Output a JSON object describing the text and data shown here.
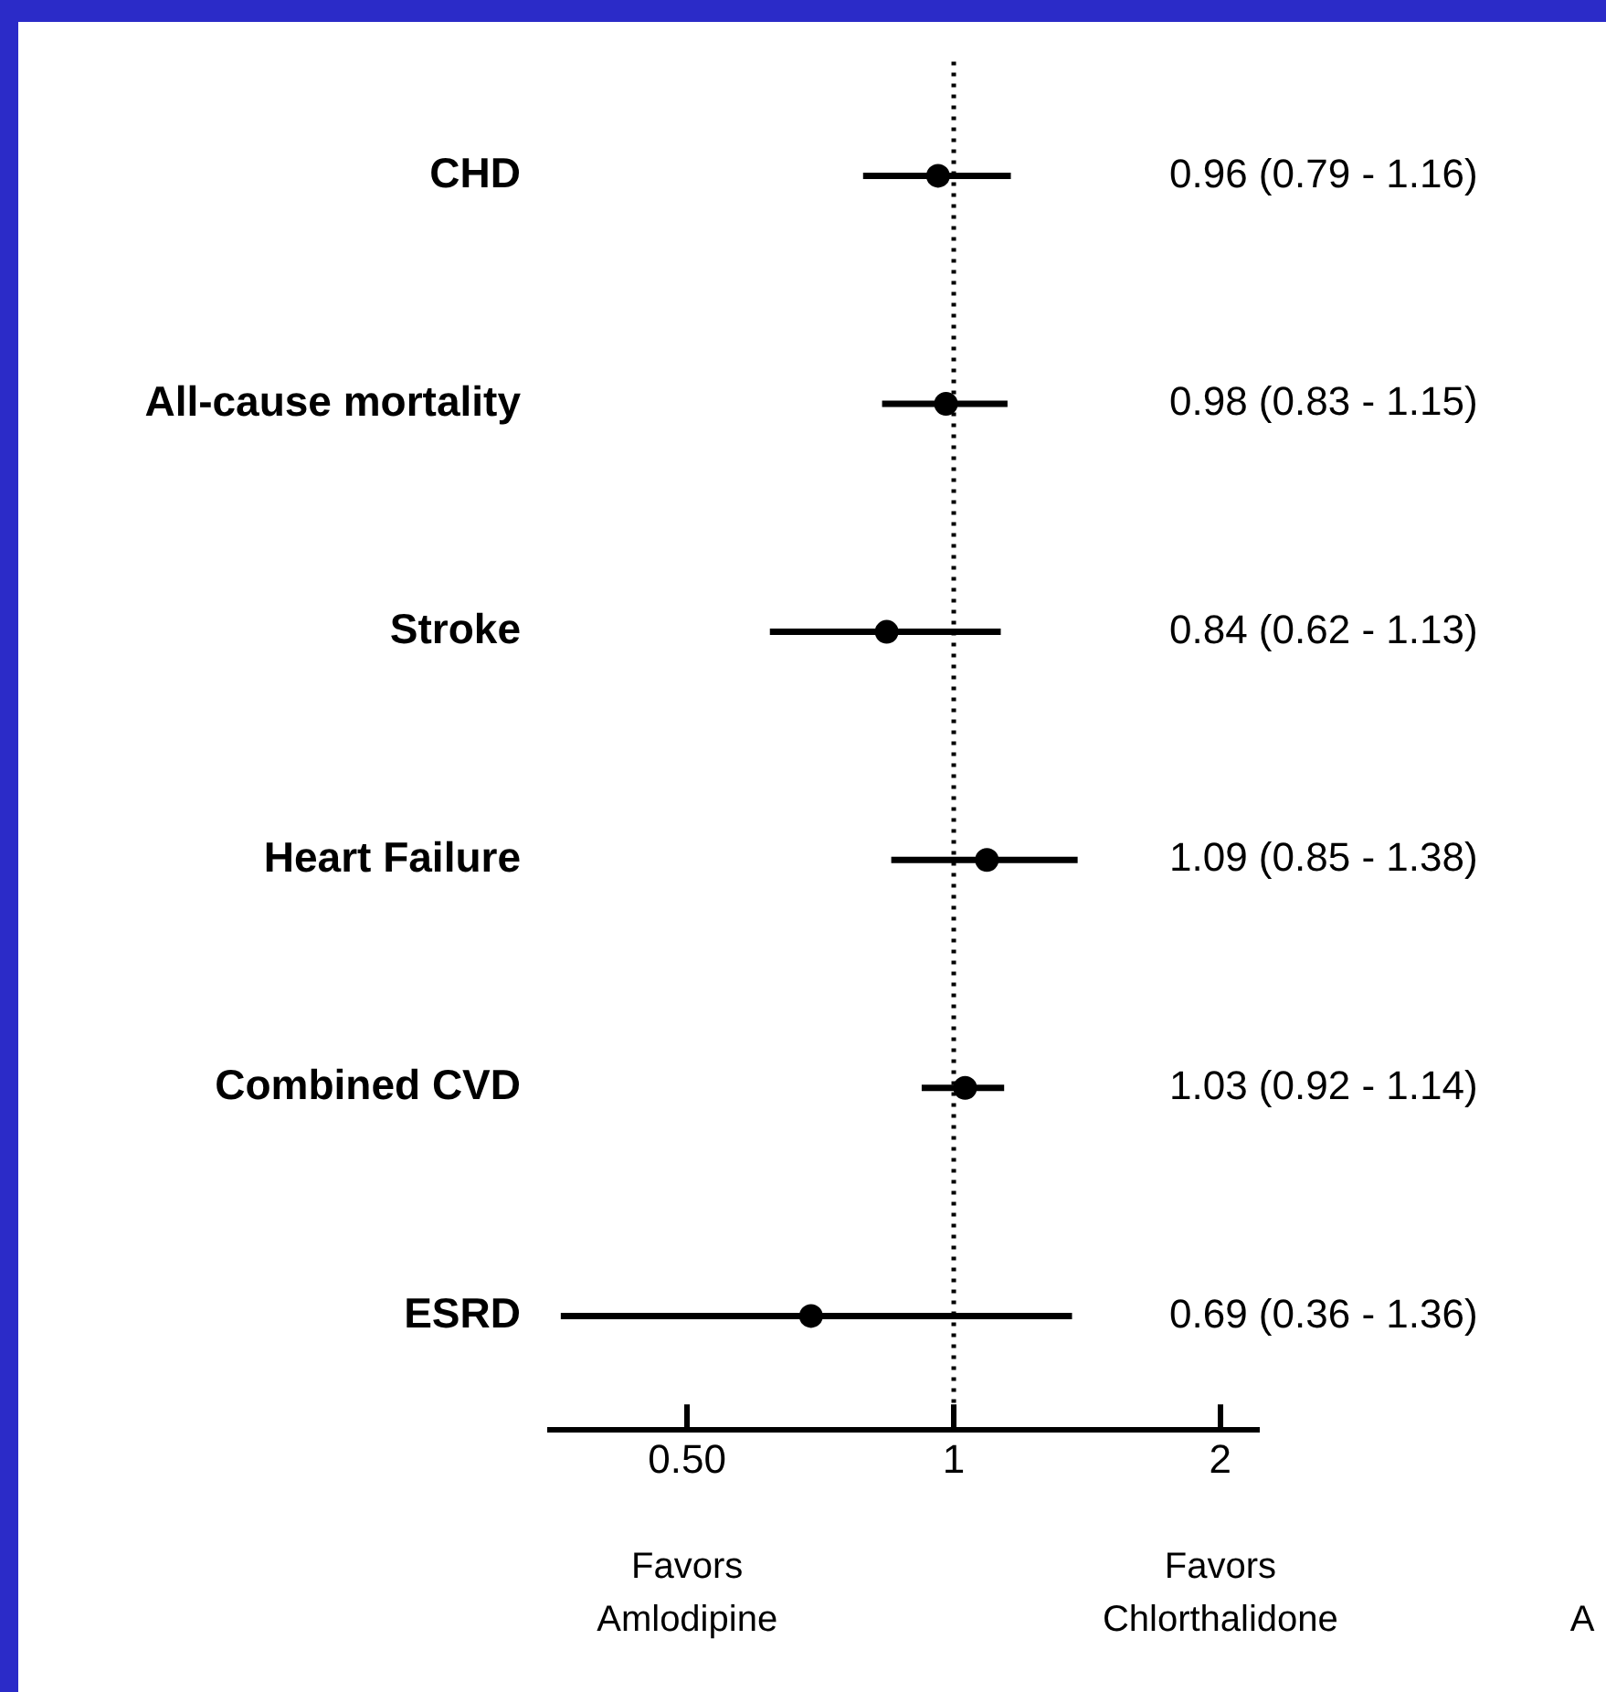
{
  "chart_data": {
    "type": "scatter",
    "orientation": "horizontal",
    "categories": [
      "CHD",
      "All-cause mortality",
      "Stroke",
      "Heart Failure",
      "Combined CVD",
      "ESRD"
    ],
    "values": [
      0.96,
      0.98,
      0.84,
      1.09,
      1.03,
      0.69
    ],
    "errors": [
      [
        0.79,
        1.16
      ],
      [
        0.83,
        1.15
      ],
      [
        0.62,
        1.13
      ],
      [
        0.85,
        1.38
      ],
      [
        0.92,
        1.14
      ],
      [
        0.36,
        1.36
      ]
    ],
    "value_labels": [
      "0.96 (0.79 - 1.16)",
      "0.98 (0.83 - 1.15)",
      "0.84 (0.62 - 1.13)",
      "1.09 (0.85 - 1.38)",
      "1.03 (0.92 - 1.14)",
      "0.69 (0.36 - 1.36)"
    ],
    "color": "#000000",
    "marker": "circle",
    "log": "x",
    "xlim": [
      0.35,
      2.2
    ],
    "xticks": [
      {
        "value": 0.5,
        "label": "0.50"
      },
      1,
      2
    ],
    "ref_lines": [
      {
        "axis": "x",
        "value": 1,
        "line_style": "dotted",
        "color": "#000000"
      }
    ],
    "grid": false,
    "legend": false,
    "annotations": [
      "Favors\nAmlodipine",
      "Favors\nChlorthalidone",
      "A"
    ]
  }
}
